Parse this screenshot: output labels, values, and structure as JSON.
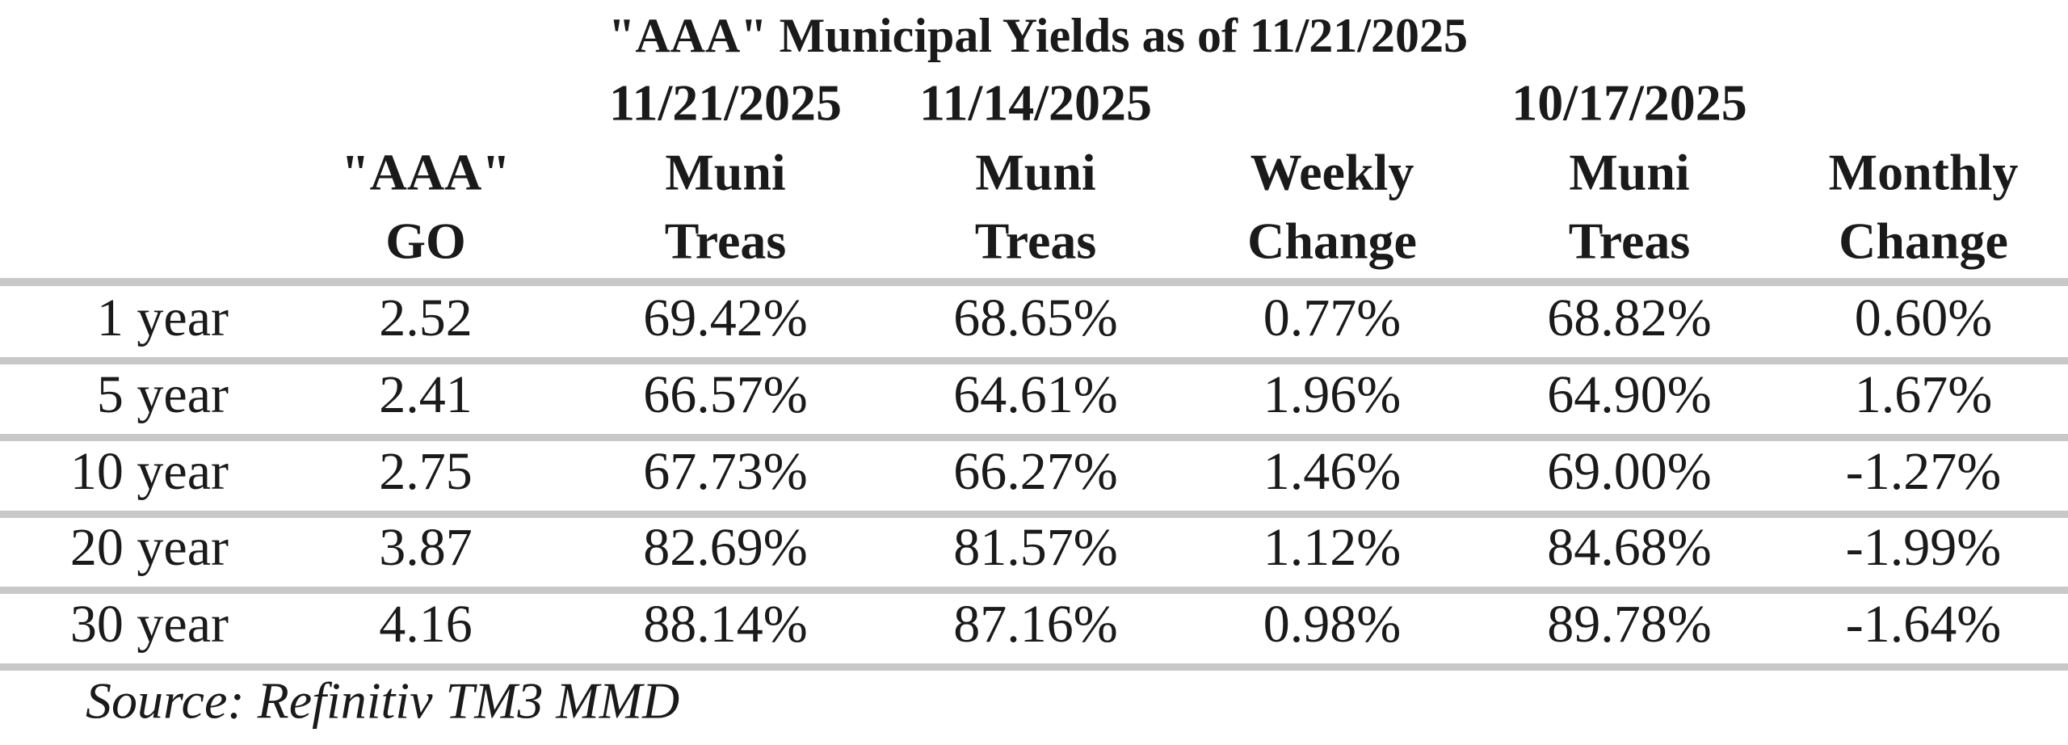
{
  "title": "\"AAA\" Municipal Yields as of 11/21/2025",
  "table": {
    "columns": [
      {
        "label": [
          "\"AAA\"",
          "GO"
        ]
      },
      {
        "date": "11/21/2025",
        "label": [
          "Muni",
          "Treas"
        ]
      },
      {
        "date": "11/14/2025",
        "label": [
          "Muni",
          "Treas"
        ]
      },
      {
        "label": [
          "Weekly",
          "Change"
        ]
      },
      {
        "date": "10/17/2025",
        "label": [
          "Muni",
          "Treas"
        ]
      },
      {
        "label": [
          "Monthly",
          "Change"
        ]
      }
    ],
    "rows": [
      {
        "label": "1 year",
        "cells": [
          "2.52",
          "69.42%",
          "68.65%",
          "0.77%",
          "68.82%",
          "0.60%"
        ]
      },
      {
        "label": "5 year",
        "cells": [
          "2.41",
          "66.57%",
          "64.61%",
          "1.96%",
          "64.90%",
          "1.67%"
        ]
      },
      {
        "label": "10 year",
        "cells": [
          "2.75",
          "67.73%",
          "66.27%",
          "1.46%",
          "69.00%",
          "-1.27%"
        ]
      },
      {
        "label": "20 year",
        "cells": [
          "3.87",
          "82.69%",
          "81.57%",
          "1.12%",
          "84.68%",
          "-1.99%"
        ]
      },
      {
        "label": "30 year",
        "cells": [
          "4.16",
          "88.14%",
          "87.16%",
          "0.98%",
          "89.78%",
          "-1.64%"
        ]
      }
    ]
  },
  "source": "Source: Refinitiv TM3 MMD"
}
